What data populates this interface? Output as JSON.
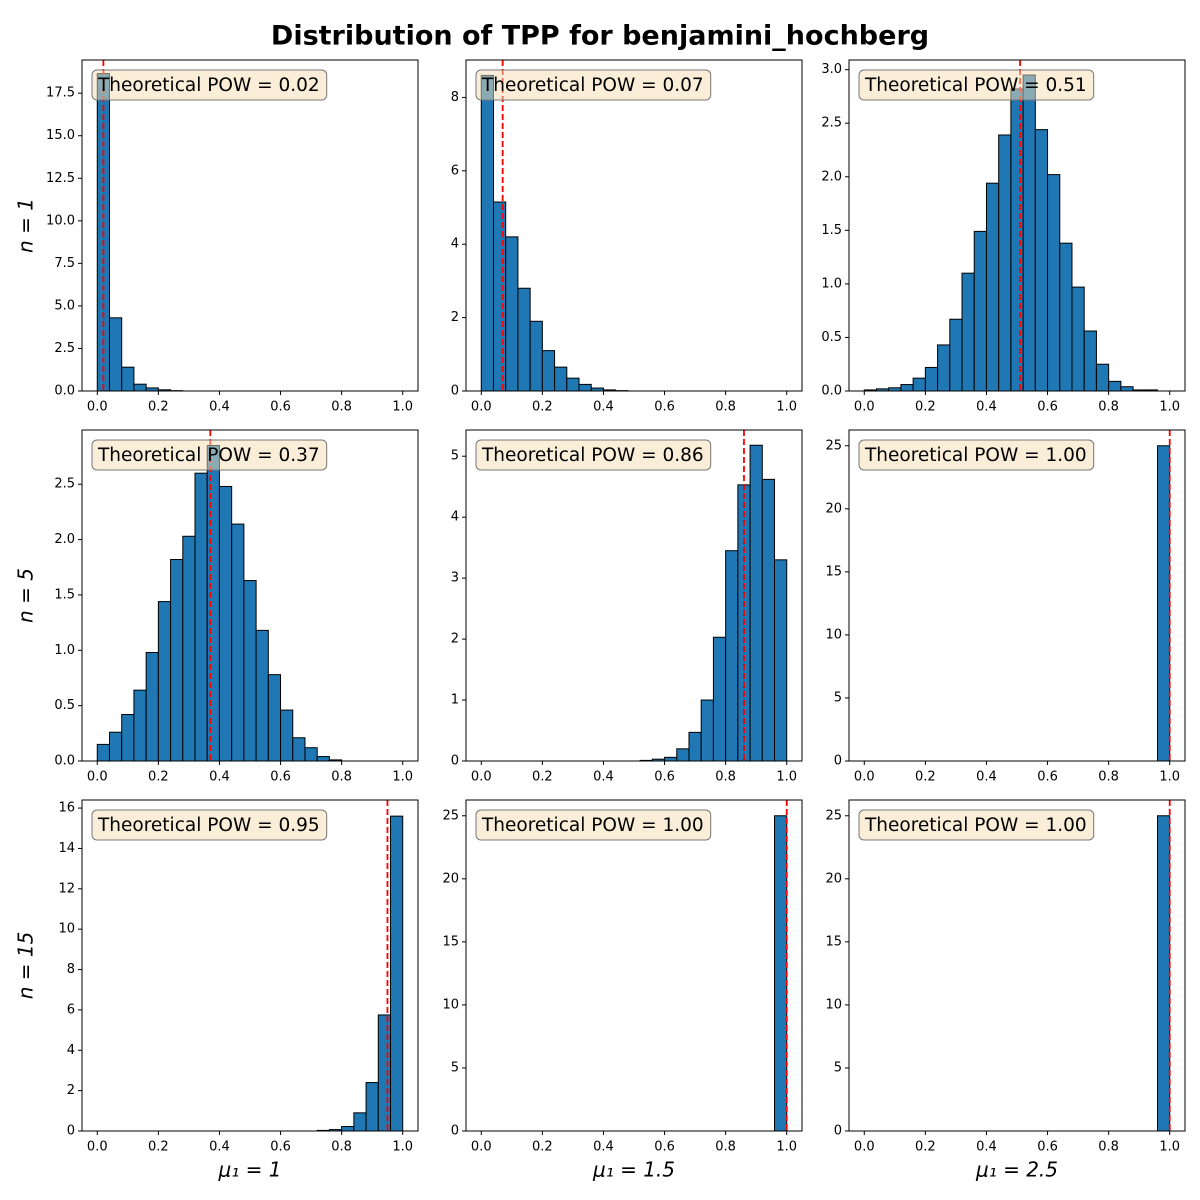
{
  "title": "Distribution of TPP for benjamini_hochberg",
  "chart_data": [
    {
      "type": "histogram",
      "color": "#1f77b4",
      "edgecolor": "#000000",
      "vline": 0.02,
      "vline_color": "#ff0000",
      "annotation": "Theoretical POW = 0.02",
      "ylabel": "n = 1",
      "bins": [
        0,
        0.04,
        0.08,
        0.12,
        0.16,
        0.2,
        0.24,
        0.28,
        0.32,
        0.36,
        0.4,
        0.44,
        0.48,
        0.52,
        0.56,
        0.6,
        0.64,
        0.68,
        0.72,
        0.76,
        0.8,
        0.84,
        0.88,
        0.92,
        0.96,
        1
      ],
      "values": [
        18.65,
        4.3,
        1.4,
        0.4,
        0.18,
        0.07,
        0.02,
        0,
        0,
        0,
        0,
        0,
        0,
        0,
        0,
        0,
        0,
        0,
        0,
        0,
        0,
        0,
        0,
        0,
        0
      ],
      "xlim": [
        -0.05,
        1.05
      ],
      "ylim": [
        0,
        19.45
      ],
      "xticks": [
        {
          "value": 0,
          "label": "0.0"
        },
        0.2,
        0.4,
        0.6,
        0.8,
        {
          "value": 1,
          "label": "1.0"
        }
      ],
      "yticks": [
        {
          "value": 0,
          "label": "0.0"
        },
        2.5,
        {
          "value": 5,
          "label": "5.0"
        },
        7.5,
        {
          "value": 10,
          "label": "10.0"
        },
        12.5,
        {
          "value": 15,
          "label": "15.0"
        },
        17.5
      ]
    },
    {
      "type": "histogram",
      "color": "#1f77b4",
      "edgecolor": "#000000",
      "vline": 0.07,
      "vline_color": "#ff0000",
      "annotation": "Theoretical POW = 0.07",
      "bins": [
        0,
        0.04,
        0.08,
        0.12,
        0.16,
        0.2,
        0.24,
        0.28,
        0.32,
        0.36,
        0.4,
        0.44,
        0.48,
        0.52,
        0.56,
        0.6,
        0.64,
        0.68,
        0.72,
        0.76,
        0.8,
        0.84,
        0.88,
        0.92,
        0.96,
        1
      ],
      "values": [
        8.6,
        5.15,
        4.2,
        2.8,
        1.9,
        1.1,
        0.65,
        0.35,
        0.18,
        0.08,
        0.03,
        0.01,
        0,
        0,
        0,
        0,
        0,
        0,
        0,
        0,
        0,
        0,
        0,
        0,
        0
      ],
      "xlim": [
        -0.05,
        1.05
      ],
      "ylim": [
        0,
        9.02
      ],
      "xticks": [
        {
          "value": 0,
          "label": "0.0"
        },
        0.2,
        0.4,
        0.6,
        0.8,
        {
          "value": 1,
          "label": "1.0"
        }
      ],
      "yticks": [
        0,
        2,
        4,
        6,
        8
      ]
    },
    {
      "type": "histogram",
      "color": "#1f77b4",
      "edgecolor": "#000000",
      "vline": 0.51,
      "vline_color": "#ff0000",
      "annotation": "Theoretical POW = 0.51",
      "bins": [
        0,
        0.04,
        0.08,
        0.12,
        0.16,
        0.2,
        0.24,
        0.28,
        0.32,
        0.36,
        0.4,
        0.44,
        0.48,
        0.52,
        0.56,
        0.6,
        0.64,
        0.68,
        0.72,
        0.76,
        0.8,
        0.84,
        0.88,
        0.92,
        0.96,
        1
      ],
      "values": [
        0.01,
        0.02,
        0.03,
        0.06,
        0.12,
        0.22,
        0.43,
        0.67,
        1.1,
        1.49,
        1.94,
        2.39,
        2.82,
        2.95,
        2.44,
        2.02,
        1.38,
        0.97,
        0.56,
        0.25,
        0.09,
        0.04,
        0.01,
        0.01,
        0
      ],
      "xlim": [
        -0.05,
        1.05
      ],
      "ylim": [
        0,
        3.09
      ],
      "xticks": [
        {
          "value": 0,
          "label": "0.0"
        },
        0.2,
        0.4,
        0.6,
        0.8,
        {
          "value": 1,
          "label": "1.0"
        }
      ],
      "yticks": [
        {
          "value": 0,
          "label": "0.0"
        },
        0.5,
        {
          "value": 1,
          "label": "1.0"
        },
        1.5,
        {
          "value": 2,
          "label": "2.0"
        },
        2.5,
        {
          "value": 3,
          "label": "3.0"
        }
      ]
    },
    {
      "type": "histogram",
      "color": "#1f77b4",
      "edgecolor": "#000000",
      "vline": 0.37,
      "vline_color": "#ff0000",
      "annotation": "Theoretical POW = 0.37",
      "ylabel": "n = 5",
      "bins": [
        0,
        0.04,
        0.08,
        0.12,
        0.16,
        0.2,
        0.24,
        0.28,
        0.32,
        0.36,
        0.4,
        0.44,
        0.48,
        0.52,
        0.56,
        0.6,
        0.64,
        0.68,
        0.72,
        0.76,
        0.8,
        0.84,
        0.88,
        0.92,
        0.96,
        1
      ],
      "values": [
        0.15,
        0.26,
        0.42,
        0.64,
        0.98,
        1.44,
        1.82,
        2.03,
        2.6,
        2.85,
        2.48,
        2.14,
        1.63,
        1.18,
        0.78,
        0.46,
        0.21,
        0.12,
        0.04,
        0.01,
        0,
        0,
        0,
        0,
        0
      ],
      "xlim": [
        -0.05,
        1.05
      ],
      "ylim": [
        0,
        2.99
      ],
      "xticks": [
        {
          "value": 0,
          "label": "0.0"
        },
        0.2,
        0.4,
        0.6,
        0.8,
        {
          "value": 1,
          "label": "1.0"
        }
      ],
      "yticks": [
        {
          "value": 0,
          "label": "0.0"
        },
        0.5,
        {
          "value": 1,
          "label": "1.0"
        },
        1.5,
        {
          "value": 2,
          "label": "2.0"
        },
        2.5
      ]
    },
    {
      "type": "histogram",
      "color": "#1f77b4",
      "edgecolor": "#000000",
      "vline": 0.86,
      "vline_color": "#ff0000",
      "annotation": "Theoretical POW = 0.86",
      "bins": [
        0,
        0.04,
        0.08,
        0.12,
        0.16,
        0.2,
        0.24,
        0.28,
        0.32,
        0.36,
        0.4,
        0.44,
        0.48,
        0.52,
        0.56,
        0.6,
        0.64,
        0.68,
        0.72,
        0.76,
        0.8,
        0.84,
        0.88,
        0.92,
        0.96,
        1
      ],
      "values": [
        0,
        0,
        0,
        0,
        0,
        0,
        0,
        0,
        0,
        0,
        0,
        0,
        0,
        0.01,
        0.03,
        0.06,
        0.2,
        0.47,
        1.0,
        2.03,
        3.45,
        4.53,
        5.18,
        4.62,
        3.3
      ],
      "xlim": [
        -0.05,
        1.05
      ],
      "ylim": [
        0,
        5.43
      ],
      "xticks": [
        {
          "value": 0,
          "label": "0.0"
        },
        0.2,
        0.4,
        0.6,
        0.8,
        {
          "value": 1,
          "label": "1.0"
        }
      ],
      "yticks": [
        0,
        1,
        2,
        3,
        4,
        5
      ]
    },
    {
      "type": "histogram",
      "color": "#1f77b4",
      "edgecolor": "#000000",
      "vline": 1.0,
      "vline_color": "#ff0000",
      "annotation": "Theoretical POW = 1.00",
      "bins": [
        0,
        0.04,
        0.08,
        0.12,
        0.16,
        0.2,
        0.24,
        0.28,
        0.32,
        0.36,
        0.4,
        0.44,
        0.48,
        0.52,
        0.56,
        0.6,
        0.64,
        0.68,
        0.72,
        0.76,
        0.8,
        0.84,
        0.88,
        0.92,
        0.96,
        1
      ],
      "values": [
        0,
        0,
        0,
        0,
        0,
        0,
        0,
        0,
        0,
        0,
        0,
        0,
        0,
        0,
        0,
        0,
        0,
        0,
        0,
        0,
        0,
        0,
        0,
        0,
        25
      ],
      "xlim": [
        -0.05,
        1.05
      ],
      "ylim": [
        0,
        26.25
      ],
      "xticks": [
        {
          "value": 0,
          "label": "0.0"
        },
        0.2,
        0.4,
        0.6,
        0.8,
        {
          "value": 1,
          "label": "1.0"
        }
      ],
      "yticks": [
        0,
        5,
        10,
        15,
        20,
        25
      ]
    },
    {
      "type": "histogram",
      "color": "#1f77b4",
      "edgecolor": "#000000",
      "vline": 0.95,
      "vline_color": "#ff0000",
      "annotation": "Theoretical POW = 0.95",
      "ylabel": "n = 15",
      "xlabel": "μ₁ = 1",
      "bins": [
        0,
        0.04,
        0.08,
        0.12,
        0.16,
        0.2,
        0.24,
        0.28,
        0.32,
        0.36,
        0.4,
        0.44,
        0.48,
        0.52,
        0.56,
        0.6,
        0.64,
        0.68,
        0.72,
        0.76,
        0.8,
        0.84,
        0.88,
        0.92,
        0.96,
        1
      ],
      "values": [
        0,
        0,
        0,
        0,
        0,
        0,
        0,
        0,
        0,
        0,
        0,
        0,
        0,
        0,
        0,
        0,
        0,
        0,
        0.03,
        0.07,
        0.22,
        0.9,
        2.4,
        5.75,
        15.6
      ],
      "xlim": [
        -0.05,
        1.05
      ],
      "ylim": [
        0,
        16.4
      ],
      "xticks": [
        {
          "value": 0,
          "label": "0.0"
        },
        0.2,
        0.4,
        0.6,
        0.8,
        {
          "value": 1,
          "label": "1.0"
        }
      ],
      "yticks": [
        0,
        2,
        4,
        6,
        8,
        10,
        12,
        14,
        16
      ]
    },
    {
      "type": "histogram",
      "color": "#1f77b4",
      "edgecolor": "#000000",
      "vline": 1.0,
      "vline_color": "#ff0000",
      "annotation": "Theoretical POW = 1.00",
      "xlabel": "μ₁ = 1.5",
      "bins": [
        0,
        0.04,
        0.08,
        0.12,
        0.16,
        0.2,
        0.24,
        0.28,
        0.32,
        0.36,
        0.4,
        0.44,
        0.48,
        0.52,
        0.56,
        0.6,
        0.64,
        0.68,
        0.72,
        0.76,
        0.8,
        0.84,
        0.88,
        0.92,
        0.96,
        1
      ],
      "values": [
        0,
        0,
        0,
        0,
        0,
        0,
        0,
        0,
        0,
        0,
        0,
        0,
        0,
        0,
        0,
        0,
        0,
        0,
        0,
        0,
        0,
        0,
        0,
        0,
        25
      ],
      "xlim": [
        -0.05,
        1.05
      ],
      "ylim": [
        0,
        26.25
      ],
      "xticks": [
        {
          "value": 0,
          "label": "0.0"
        },
        0.2,
        0.4,
        0.6,
        0.8,
        {
          "value": 1,
          "label": "1.0"
        }
      ],
      "yticks": [
        0,
        5,
        10,
        15,
        20,
        25
      ]
    },
    {
      "type": "histogram",
      "color": "#1f77b4",
      "edgecolor": "#000000",
      "vline": 1.0,
      "vline_color": "#ff0000",
      "annotation": "Theoretical POW = 1.00",
      "xlabel": "μ₁ = 2.5",
      "bins": [
        0,
        0.04,
        0.08,
        0.12,
        0.16,
        0.2,
        0.24,
        0.28,
        0.32,
        0.36,
        0.4,
        0.44,
        0.48,
        0.52,
        0.56,
        0.6,
        0.64,
        0.68,
        0.72,
        0.76,
        0.8,
        0.84,
        0.88,
        0.92,
        0.96,
        1
      ],
      "values": [
        0,
        0,
        0,
        0,
        0,
        0,
        0,
        0,
        0,
        0,
        0,
        0,
        0,
        0,
        0,
        0,
        0,
        0,
        0,
        0,
        0,
        0,
        0,
        0,
        25
      ],
      "xlim": [
        -0.05,
        1.05
      ],
      "ylim": [
        0,
        26.25
      ],
      "xticks": [
        {
          "value": 0,
          "label": "0.0"
        },
        0.2,
        0.4,
        0.6,
        0.8,
        {
          "value": 1,
          "label": "1.0"
        }
      ],
      "yticks": [
        0,
        5,
        10,
        15,
        20,
        25
      ]
    }
  ]
}
